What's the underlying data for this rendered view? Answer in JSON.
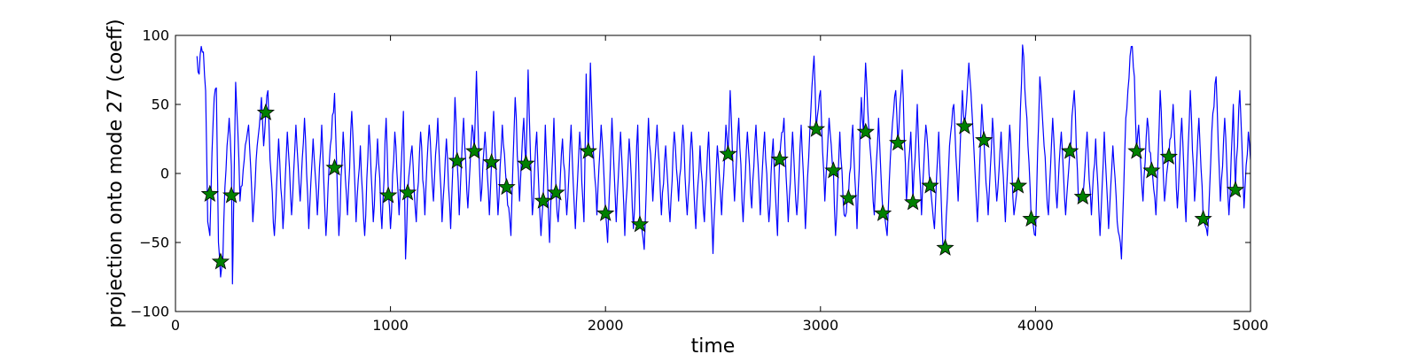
{
  "chart_data": {
    "type": "line",
    "title": "",
    "xlabel": "time",
    "ylabel": "projection onto mode 27 (coeff)",
    "xlim": [
      0,
      5000
    ],
    "ylim": [
      -100,
      100
    ],
    "xticks": [
      0,
      1000,
      2000,
      3000,
      4000,
      5000
    ],
    "yticks": [
      -100,
      -50,
      0,
      50,
      100
    ],
    "xtick_labels": [
      "0",
      "1000",
      "2000",
      "3000",
      "4000",
      "5000"
    ],
    "ytick_labels": [
      "−100",
      "−50",
      "0",
      "50",
      "100"
    ],
    "grid": false,
    "series": [
      {
        "kind": "line",
        "color": "#0000ff",
        "x_start": 100,
        "x_end": 5000,
        "keypoints": [
          [
            100,
            85
          ],
          [
            110,
            72
          ],
          [
            120,
            92
          ],
          [
            130,
            88
          ],
          [
            140,
            60
          ],
          [
            150,
            -35
          ],
          [
            160,
            -45
          ],
          [
            170,
            15
          ],
          [
            180,
            55
          ],
          [
            190,
            62
          ],
          [
            200,
            -50
          ],
          [
            210,
            -75
          ],
          [
            220,
            -63
          ],
          [
            230,
            -10
          ],
          [
            240,
            20
          ],
          [
            250,
            40
          ],
          [
            260,
            5
          ],
          [
            265,
            -80
          ],
          [
            270,
            -30
          ],
          [
            280,
            66
          ],
          [
            290,
            30
          ],
          [
            300,
            -20
          ],
          [
            320,
            10
          ],
          [
            340,
            35
          ],
          [
            360,
            -35
          ],
          [
            380,
            20
          ],
          [
            400,
            55
          ],
          [
            410,
            20
          ],
          [
            420,
            44
          ],
          [
            430,
            60
          ],
          [
            440,
            10
          ],
          [
            460,
            -45
          ],
          [
            480,
            25
          ],
          [
            500,
            -40
          ],
          [
            520,
            30
          ],
          [
            540,
            -30
          ],
          [
            560,
            35
          ],
          [
            580,
            -20
          ],
          [
            600,
            40
          ],
          [
            620,
            -40
          ],
          [
            640,
            25
          ],
          [
            660,
            -30
          ],
          [
            680,
            35
          ],
          [
            700,
            -45
          ],
          [
            720,
            20
          ],
          [
            740,
            58
          ],
          [
            750,
            5
          ],
          [
            760,
            -45
          ],
          [
            780,
            30
          ],
          [
            800,
            -30
          ],
          [
            820,
            45
          ],
          [
            840,
            -35
          ],
          [
            860,
            20
          ],
          [
            880,
            -45
          ],
          [
            900,
            35
          ],
          [
            920,
            -35
          ],
          [
            940,
            25
          ],
          [
            960,
            -40
          ],
          [
            980,
            40
          ],
          [
            990,
            -15
          ],
          [
            1000,
            -40
          ],
          [
            1020,
            30
          ],
          [
            1040,
            -30
          ],
          [
            1060,
            45
          ],
          [
            1070,
            -62
          ],
          [
            1080,
            -14
          ],
          [
            1100,
            20
          ],
          [
            1120,
            -35
          ],
          [
            1140,
            30
          ],
          [
            1160,
            -30
          ],
          [
            1180,
            35
          ],
          [
            1200,
            -20
          ],
          [
            1220,
            40
          ],
          [
            1240,
            -35
          ],
          [
            1260,
            25
          ],
          [
            1280,
            -40
          ],
          [
            1300,
            55
          ],
          [
            1310,
            9
          ],
          [
            1320,
            -30
          ],
          [
            1340,
            40
          ],
          [
            1360,
            -25
          ],
          [
            1380,
            35
          ],
          [
            1390,
            16
          ],
          [
            1400,
            74
          ],
          [
            1410,
            20
          ],
          [
            1420,
            -20
          ],
          [
            1440,
            30
          ],
          [
            1460,
            -30
          ],
          [
            1470,
            8
          ],
          [
            1480,
            45
          ],
          [
            1500,
            -30
          ],
          [
            1520,
            35
          ],
          [
            1540,
            -10
          ],
          [
            1560,
            -45
          ],
          [
            1580,
            55
          ],
          [
            1600,
            -20
          ],
          [
            1620,
            40
          ],
          [
            1630,
            7
          ],
          [
            1640,
            75
          ],
          [
            1660,
            -30
          ],
          [
            1680,
            30
          ],
          [
            1700,
            -45
          ],
          [
            1710,
            -20
          ],
          [
            1720,
            35
          ],
          [
            1740,
            -50
          ],
          [
            1760,
            40
          ],
          [
            1770,
            -13
          ],
          [
            1780,
            -35
          ],
          [
            1800,
            25
          ],
          [
            1820,
            -30
          ],
          [
            1840,
            35
          ],
          [
            1860,
            -40
          ],
          [
            1880,
            30
          ],
          [
            1900,
            -35
          ],
          [
            1910,
            72
          ],
          [
            1920,
            16
          ],
          [
            1930,
            80
          ],
          [
            1940,
            30
          ],
          [
            1960,
            -30
          ],
          [
            1980,
            35
          ],
          [
            2000,
            -28
          ],
          [
            2010,
            -50
          ],
          [
            2030,
            40
          ],
          [
            2050,
            -35
          ],
          [
            2070,
            30
          ],
          [
            2090,
            -45
          ],
          [
            2110,
            25
          ],
          [
            2130,
            -40
          ],
          [
            2150,
            35
          ],
          [
            2160,
            -36
          ],
          [
            2180,
            -55
          ],
          [
            2200,
            40
          ],
          [
            2220,
            -20
          ],
          [
            2240,
            35
          ],
          [
            2260,
            -30
          ],
          [
            2280,
            20
          ],
          [
            2300,
            -35
          ],
          [
            2320,
            30
          ],
          [
            2340,
            -20
          ],
          [
            2360,
            35
          ],
          [
            2380,
            -30
          ],
          [
            2400,
            30
          ],
          [
            2420,
            -40
          ],
          [
            2440,
            20
          ],
          [
            2460,
            -35
          ],
          [
            2480,
            30
          ],
          [
            2500,
            -58
          ],
          [
            2520,
            20
          ],
          [
            2540,
            -30
          ],
          [
            2560,
            35
          ],
          [
            2570,
            14
          ],
          [
            2580,
            60
          ],
          [
            2600,
            -20
          ],
          [
            2620,
            40
          ],
          [
            2640,
            -35
          ],
          [
            2660,
            30
          ],
          [
            2680,
            -25
          ],
          [
            2700,
            35
          ],
          [
            2720,
            -30
          ],
          [
            2740,
            30
          ],
          [
            2760,
            -35
          ],
          [
            2780,
            25
          ],
          [
            2800,
            -45
          ],
          [
            2810,
            10
          ],
          [
            2830,
            40
          ],
          [
            2850,
            -35
          ],
          [
            2870,
            30
          ],
          [
            2890,
            -30
          ],
          [
            2910,
            35
          ],
          [
            2930,
            -40
          ],
          [
            2950,
            30
          ],
          [
            2970,
            85
          ],
          [
            2980,
            32
          ],
          [
            3000,
            60
          ],
          [
            3020,
            -20
          ],
          [
            3040,
            40
          ],
          [
            3060,
            2
          ],
          [
            3070,
            -45
          ],
          [
            3090,
            30
          ],
          [
            3110,
            -30
          ],
          [
            3130,
            -17
          ],
          [
            3150,
            35
          ],
          [
            3170,
            -40
          ],
          [
            3190,
            55
          ],
          [
            3200,
            30
          ],
          [
            3210,
            80
          ],
          [
            3230,
            20
          ],
          [
            3250,
            -30
          ],
          [
            3270,
            40
          ],
          [
            3290,
            -28
          ],
          [
            3310,
            -45
          ],
          [
            3330,
            25
          ],
          [
            3350,
            60
          ],
          [
            3360,
            22
          ],
          [
            3380,
            75
          ],
          [
            3400,
            -20
          ],
          [
            3420,
            30
          ],
          [
            3430,
            -20
          ],
          [
            3450,
            50
          ],
          [
            3470,
            -30
          ],
          [
            3490,
            35
          ],
          [
            3510,
            -8
          ],
          [
            3530,
            -40
          ],
          [
            3550,
            30
          ],
          [
            3570,
            -55
          ],
          [
            3580,
            -52
          ],
          [
            3600,
            20
          ],
          [
            3620,
            50
          ],
          [
            3640,
            -20
          ],
          [
            3660,
            60
          ],
          [
            3670,
            34
          ],
          [
            3690,
            80
          ],
          [
            3710,
            30
          ],
          [
            3730,
            -35
          ],
          [
            3750,
            50
          ],
          [
            3760,
            24
          ],
          [
            3780,
            -30
          ],
          [
            3800,
            40
          ],
          [
            3820,
            -20
          ],
          [
            3840,
            30
          ],
          [
            3860,
            -35
          ],
          [
            3880,
            35
          ],
          [
            3900,
            -30
          ],
          [
            3920,
            -9
          ],
          [
            3940,
            93
          ],
          [
            3960,
            40
          ],
          [
            3980,
            -32
          ],
          [
            4000,
            -45
          ],
          [
            4020,
            70
          ],
          [
            4040,
            20
          ],
          [
            4060,
            -30
          ],
          [
            4080,
            40
          ],
          [
            4100,
            -25
          ],
          [
            4120,
            30
          ],
          [
            4140,
            -30
          ],
          [
            4160,
            16
          ],
          [
            4180,
            60
          ],
          [
            4200,
            -20
          ],
          [
            4220,
            -17
          ],
          [
            4240,
            30
          ],
          [
            4260,
            -30
          ],
          [
            4280,
            25
          ],
          [
            4300,
            -45
          ],
          [
            4320,
            30
          ],
          [
            4340,
            -40
          ],
          [
            4360,
            20
          ],
          [
            4380,
            -35
          ],
          [
            4400,
            -62
          ],
          [
            4420,
            40
          ],
          [
            4440,
            85
          ],
          [
            4450,
            92
          ],
          [
            4460,
            70
          ],
          [
            4470,
            16
          ],
          [
            4480,
            35
          ],
          [
            4500,
            -20
          ],
          [
            4520,
            40
          ],
          [
            4540,
            2
          ],
          [
            4560,
            -30
          ],
          [
            4580,
            60
          ],
          [
            4600,
            -20
          ],
          [
            4620,
            12
          ],
          [
            4640,
            50
          ],
          [
            4660,
            -25
          ],
          [
            4680,
            40
          ],
          [
            4700,
            -35
          ],
          [
            4720,
            60
          ],
          [
            4740,
            -20
          ],
          [
            4760,
            40
          ],
          [
            4780,
            -32
          ],
          [
            4800,
            -45
          ],
          [
            4820,
            30
          ],
          [
            4840,
            70
          ],
          [
            4860,
            -20
          ],
          [
            4880,
            40
          ],
          [
            4900,
            -30
          ],
          [
            4920,
            50
          ],
          [
            4930,
            -11
          ],
          [
            4950,
            60
          ],
          [
            4970,
            -25
          ],
          [
            4990,
            30
          ],
          [
            5000,
            10
          ]
        ]
      },
      {
        "kind": "scatter",
        "marker": "star",
        "color": "#008000",
        "points": [
          [
            160,
            -15
          ],
          [
            210,
            -64
          ],
          [
            260,
            -16
          ],
          [
            420,
            44
          ],
          [
            740,
            4
          ],
          [
            990,
            -16
          ],
          [
            1080,
            -14
          ],
          [
            1310,
            9
          ],
          [
            1390,
            16
          ],
          [
            1470,
            8
          ],
          [
            1540,
            -10
          ],
          [
            1630,
            7
          ],
          [
            1710,
            -20
          ],
          [
            1770,
            -14
          ],
          [
            1920,
            16
          ],
          [
            2000,
            -29
          ],
          [
            2160,
            -37
          ],
          [
            2570,
            14
          ],
          [
            2810,
            10
          ],
          [
            2980,
            32
          ],
          [
            3060,
            2
          ],
          [
            3130,
            -18
          ],
          [
            3210,
            30
          ],
          [
            3290,
            -29
          ],
          [
            3360,
            22
          ],
          [
            3430,
            -21
          ],
          [
            3510,
            -9
          ],
          [
            3580,
            -54
          ],
          [
            3670,
            34
          ],
          [
            3760,
            24
          ],
          [
            3920,
            -9
          ],
          [
            3980,
            -33
          ],
          [
            4160,
            16
          ],
          [
            4220,
            -17
          ],
          [
            4470,
            16
          ],
          [
            4540,
            2
          ],
          [
            4620,
            12
          ],
          [
            4780,
            -33
          ],
          [
            4930,
            -12
          ]
        ]
      }
    ]
  }
}
